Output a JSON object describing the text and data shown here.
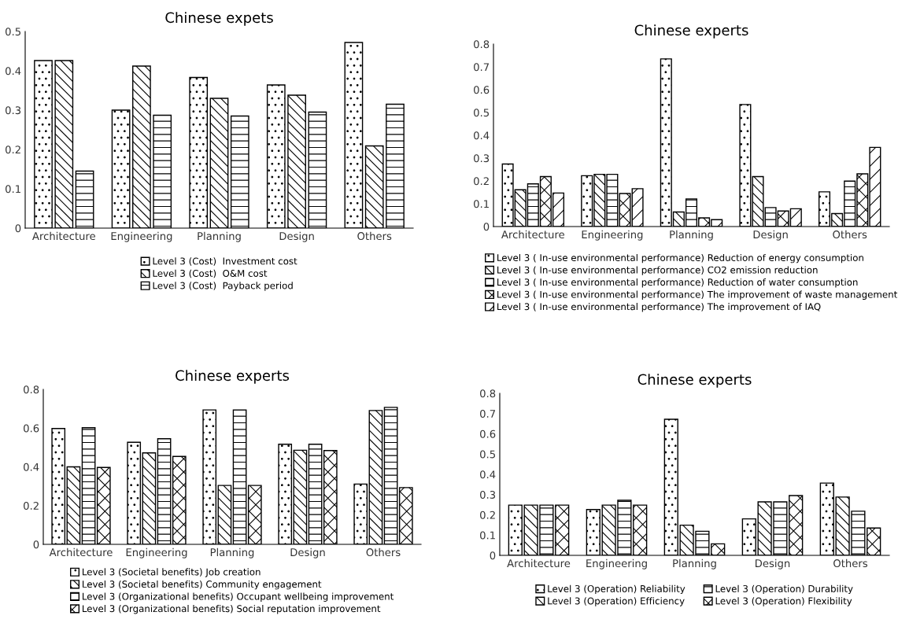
{
  "chart_data": [
    {
      "type": "bar",
      "title": "Chinese expets",
      "categories": [
        "Architecture",
        "Engineering",
        "Planning",
        "Design",
        "Others"
      ],
      "ylim": [
        0,
        0.5
      ],
      "yticks": [
        0,
        0.1,
        0.2,
        0.3,
        0.4,
        0.5
      ],
      "grid": false,
      "legend": "bottom",
      "series": [
        {
          "name": "Level 3 (Cost)  Investment cost",
          "color": "#000000",
          "values": [
            0.426,
            0.3,
            0.383,
            0.364,
            0.472
          ]
        },
        {
          "name": "Level 3 (Cost)  O&M cost",
          "color": "#000000",
          "values": [
            0.426,
            0.412,
            0.33,
            0.338,
            0.209
          ]
        },
        {
          "name": "Level 3 (Cost)  Payback period",
          "color": "#000000",
          "values": [
            0.145,
            0.287,
            0.285,
            0.295,
            0.315
          ]
        }
      ]
    },
    {
      "type": "bar",
      "title": "Chinese experts",
      "categories": [
        "Architecture",
        "Engineering",
        "Planning",
        "Design",
        "Others"
      ],
      "ylim": [
        0,
        0.8
      ],
      "yticks": [
        0,
        0.1,
        0.2,
        0.3,
        0.4,
        0.5,
        0.6,
        0.7,
        0.8
      ],
      "grid": false,
      "legend": "bottom",
      "series": [
        {
          "name": "Level 3 ( In-use environmental performance) Reduction of energy consumption",
          "color": "#000000",
          "values": [
            0.274,
            0.223,
            0.735,
            0.535,
            0.152
          ]
        },
        {
          "name": "Level 3 ( In-use environmental performance) CO2 emission reduction",
          "color": "#000000",
          "values": [
            0.161,
            0.229,
            0.064,
            0.219,
            0.057
          ]
        },
        {
          "name": "Level 3 ( In-use environmental performance) Reduction of water consumption",
          "color": "#000000",
          "values": [
            0.187,
            0.229,
            0.121,
            0.083,
            0.199
          ]
        },
        {
          "name": "Level 3 ( In-use environmental performance) The improvement of waste management",
          "color": "#000000",
          "values": [
            0.219,
            0.145,
            0.038,
            0.068,
            0.231
          ]
        },
        {
          "name": "Level 3 ( In-use environmental performance) The improvement of IAQ",
          "color": "#000000",
          "values": [
            0.147,
            0.166,
            0.03,
            0.078,
            0.347
          ]
        }
      ]
    },
    {
      "type": "bar",
      "title": "Chinese experts",
      "categories": [
        "Architecture",
        "Engineering",
        "Planning",
        "Design",
        "Others"
      ],
      "ylim": [
        0,
        0.8
      ],
      "yticks": [
        0,
        0.2,
        0.4,
        0.6,
        0.8
      ],
      "grid": false,
      "legend": "bottom",
      "series": [
        {
          "name": "Level 3 (Societal benefits) Job creation",
          "color": "#000000",
          "values": [
            0.598,
            0.527,
            0.694,
            0.517,
            0.311
          ]
        },
        {
          "name": "Level 3 (Societal benefits) Community engagement",
          "color": "#000000",
          "values": [
            0.4,
            0.472,
            0.304,
            0.486,
            0.691
          ]
        },
        {
          "name": "Level 3 (Organizational benefits) Occupant wellbeing improvement",
          "color": "#000000",
          "values": [
            0.602,
            0.545,
            0.694,
            0.517,
            0.707
          ]
        },
        {
          "name": "Level 3 (Organizational benefits) Social reputation improvement",
          "color": "#000000",
          "values": [
            0.397,
            0.454,
            0.304,
            0.484,
            0.293
          ]
        }
      ]
    },
    {
      "type": "bar",
      "title": "Chinese experts",
      "categories": [
        "Architecture",
        "Engineering",
        "Planning",
        "Design",
        "Others"
      ],
      "ylim": [
        0,
        0.8
      ],
      "yticks": [
        0,
        0.1,
        0.2,
        0.3,
        0.4,
        0.5,
        0.6,
        0.7,
        0.8
      ],
      "grid": false,
      "legend": "bottom",
      "series": [
        {
          "name": "Level 3 (Operation) Reliability",
          "color": "#000000",
          "values": [
            0.248,
            0.226,
            0.672,
            0.18,
            0.357
          ]
        },
        {
          "name": "Level 3 (Operation) Efficiency",
          "color": "#000000",
          "values": [
            0.248,
            0.248,
            0.149,
            0.264,
            0.288
          ]
        },
        {
          "name": "Level 3 (Operation) Durability",
          "color": "#000000",
          "values": [
            0.248,
            0.272,
            0.119,
            0.264,
            0.218
          ]
        },
        {
          "name": "Level 3 (Operation) Flexibility",
          "color": "#000000",
          "values": [
            0.248,
            0.248,
            0.057,
            0.295,
            0.135
          ]
        }
      ]
    }
  ]
}
